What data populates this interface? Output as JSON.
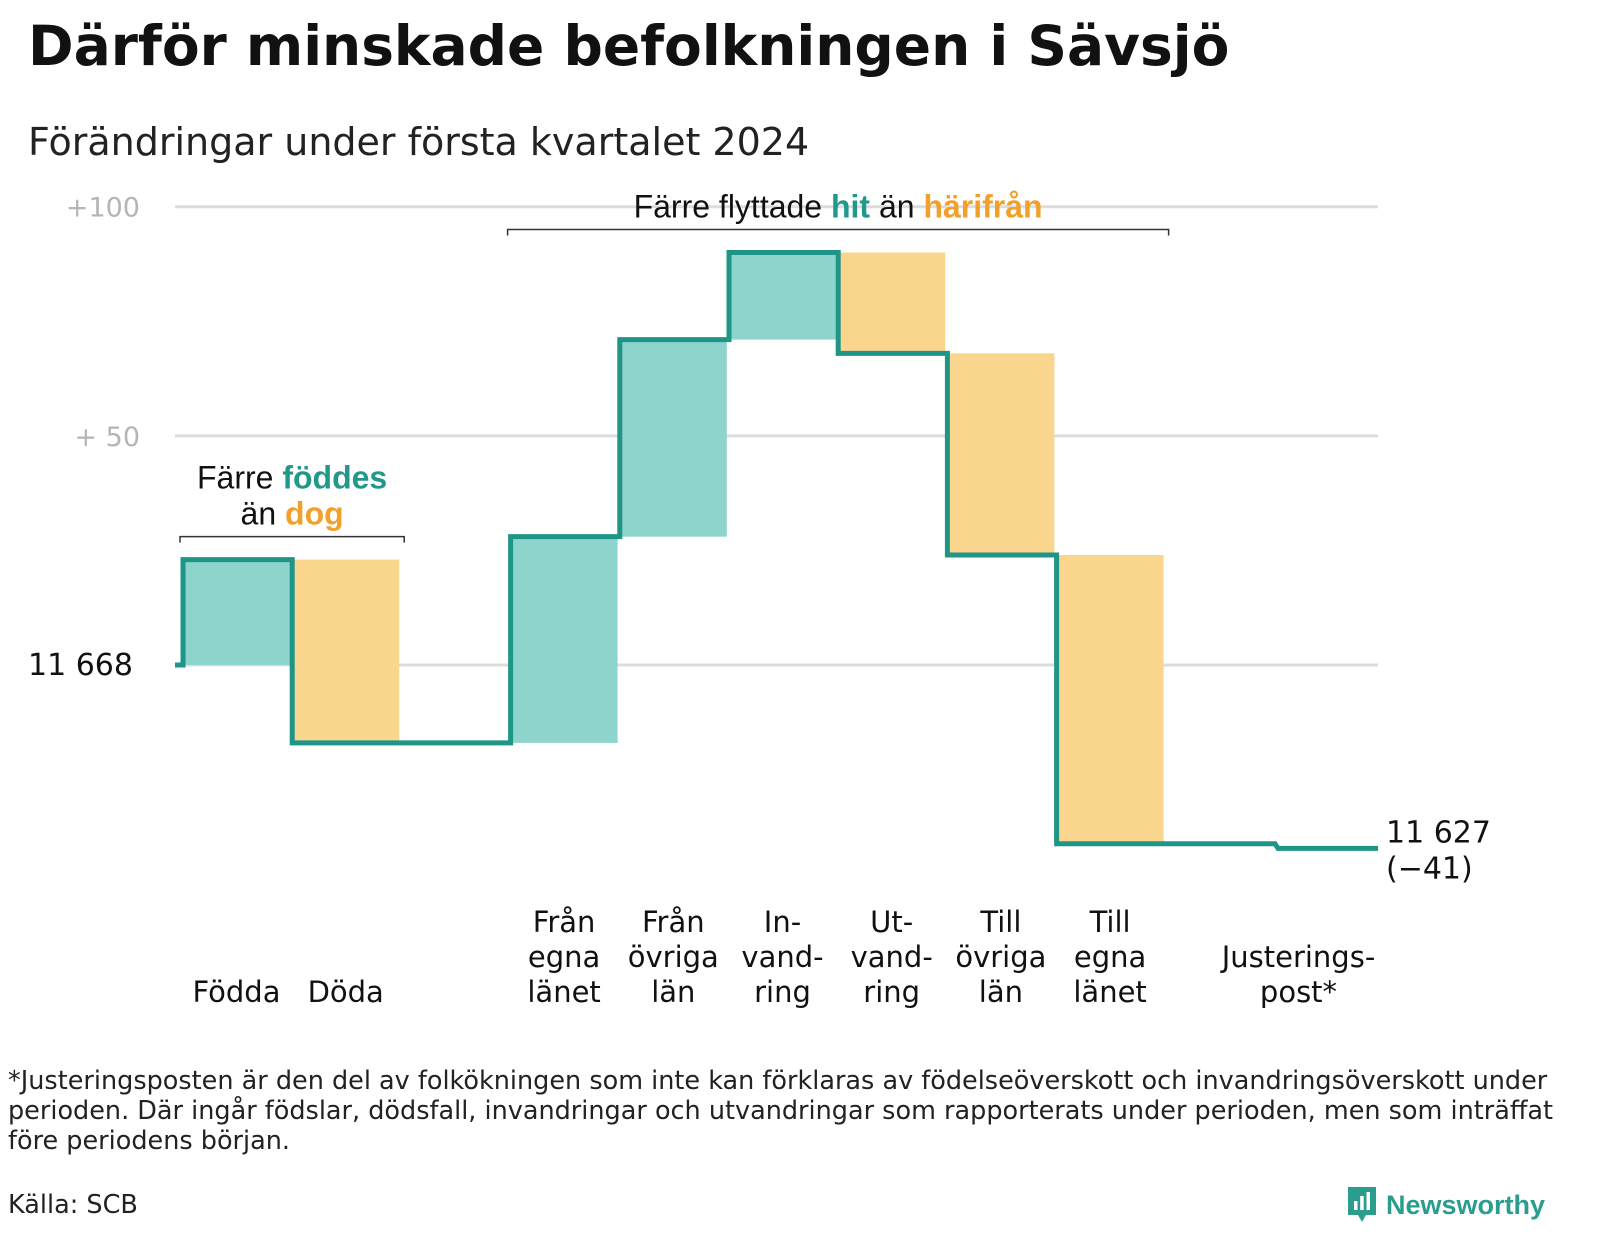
{
  "title": "Därför minskade befolkningen i Sävsjö",
  "subtitle": "Förändringar under första kvartalet 2024",
  "footnote": "*Justeringsposten är den del av folkökningen som inte kan förklaras av födelseöverskott och invandringsöverskott under perioden. Där ingår födslar, dödsfall, invandringar och utvandringar som rapporterats under perioden, men som inträffat före periodens början.",
  "source": "Källa: SCB",
  "brand": "Newsworthy",
  "colors": {
    "increase": "#8dd5cc",
    "decrease": "#fad58e",
    "line": "#1e9587",
    "teal_text": "#219889",
    "orange_text": "#f1a12b",
    "grid": "#dcdcdc"
  },
  "chart_data": {
    "type": "waterfall",
    "start_value": 11668,
    "start_label": "11  668",
    "end_value": 11627,
    "end_label": "11 627",
    "change_label": "(−41)",
    "y_ticks": [
      {
        "value": 100,
        "label": "+100"
      },
      {
        "value": 50,
        "label": "+  50"
      },
      {
        "value": 0,
        "label": ""
      }
    ],
    "ylim": [
      -45,
      101
    ],
    "steps": [
      {
        "label": [
          "Födda"
        ],
        "change": 23,
        "kind": "increase"
      },
      {
        "label": [
          "Döda"
        ],
        "change": -40,
        "kind": "decrease"
      },
      {
        "label": [],
        "change": 0,
        "kind": "none"
      },
      {
        "label": [
          "Från",
          "egna",
          "länet"
        ],
        "change": 45,
        "kind": "increase"
      },
      {
        "label": [
          "Från",
          "övriga",
          "län"
        ],
        "change": 43,
        "kind": "increase"
      },
      {
        "label": [
          "In-",
          "vand-",
          "ring"
        ],
        "change": 19,
        "kind": "increase"
      },
      {
        "label": [
          "Ut-",
          "vand-",
          "ring"
        ],
        "change": -22,
        "kind": "decrease"
      },
      {
        "label": [
          "Till",
          "övriga",
          "län"
        ],
        "change": -44,
        "kind": "decrease"
      },
      {
        "label": [
          "Till",
          "egna",
          "länet"
        ],
        "change": -63,
        "kind": "decrease"
      },
      {
        "label": [],
        "change": 0,
        "kind": "none"
      },
      {
        "label": [
          "Justerings-",
          "post*"
        ],
        "change": -1,
        "kind": "adjustment"
      }
    ],
    "annotations": [
      {
        "lines": [
          [
            {
              "text": "Färre ",
              "color": "dark"
            },
            {
              "text": "föddes",
              "color": "teal"
            }
          ],
          [
            {
              "text": "än ",
              "color": "dark"
            },
            {
              "text": "dog",
              "color": "orange"
            }
          ]
        ],
        "from_step": 0,
        "to_step": 1
      },
      {
        "lines": [
          [
            {
              "text": "Färre flyttade ",
              "color": "dark"
            },
            {
              "text": "hit",
              "color": "teal"
            },
            {
              "text": "  än ",
              "color": "dark"
            },
            {
              "text": "härifrån",
              "color": "orange"
            }
          ]
        ],
        "from_step": 3,
        "to_step": 8
      }
    ]
  }
}
